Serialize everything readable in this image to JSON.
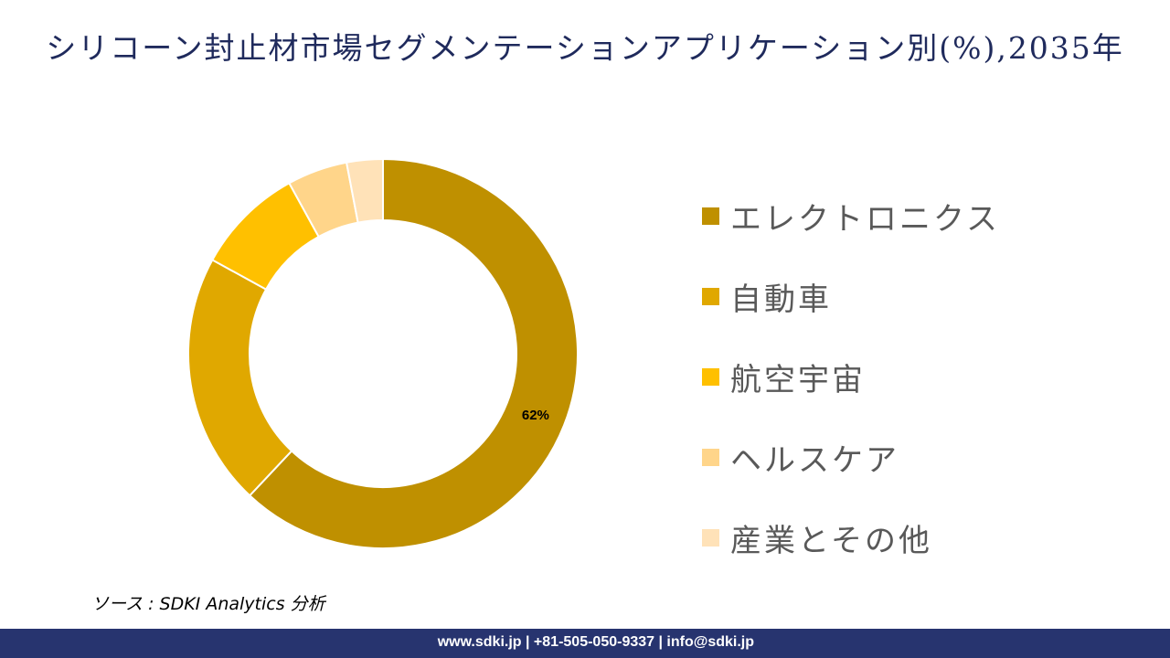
{
  "title": "シリコーン封止材市場セグメンテーションアプリケーション別(%),2035年",
  "chart_data": {
    "type": "pie",
    "subtype": "donut",
    "title": "シリコーン封止材市場セグメンテーションアプリケーション別(%),2035年",
    "categories": [
      "エレクトロニクス",
      "自動車",
      "航空宇宙",
      "ヘルスケア",
      "産業とその他"
    ],
    "values": [
      62,
      21,
      9,
      5,
      3
    ],
    "colors": [
      "#BF9000",
      "#E0A800",
      "#FFC000",
      "#FFD58A",
      "#FFE2B8"
    ],
    "data_labels": [
      "62%",
      "",
      "",
      "",
      ""
    ],
    "legend_position": "right"
  },
  "source": "ソース : SDKI Analytics 分析",
  "footer": "www.sdki.jp | +81-505-050-9337 | info@sdki.jp"
}
